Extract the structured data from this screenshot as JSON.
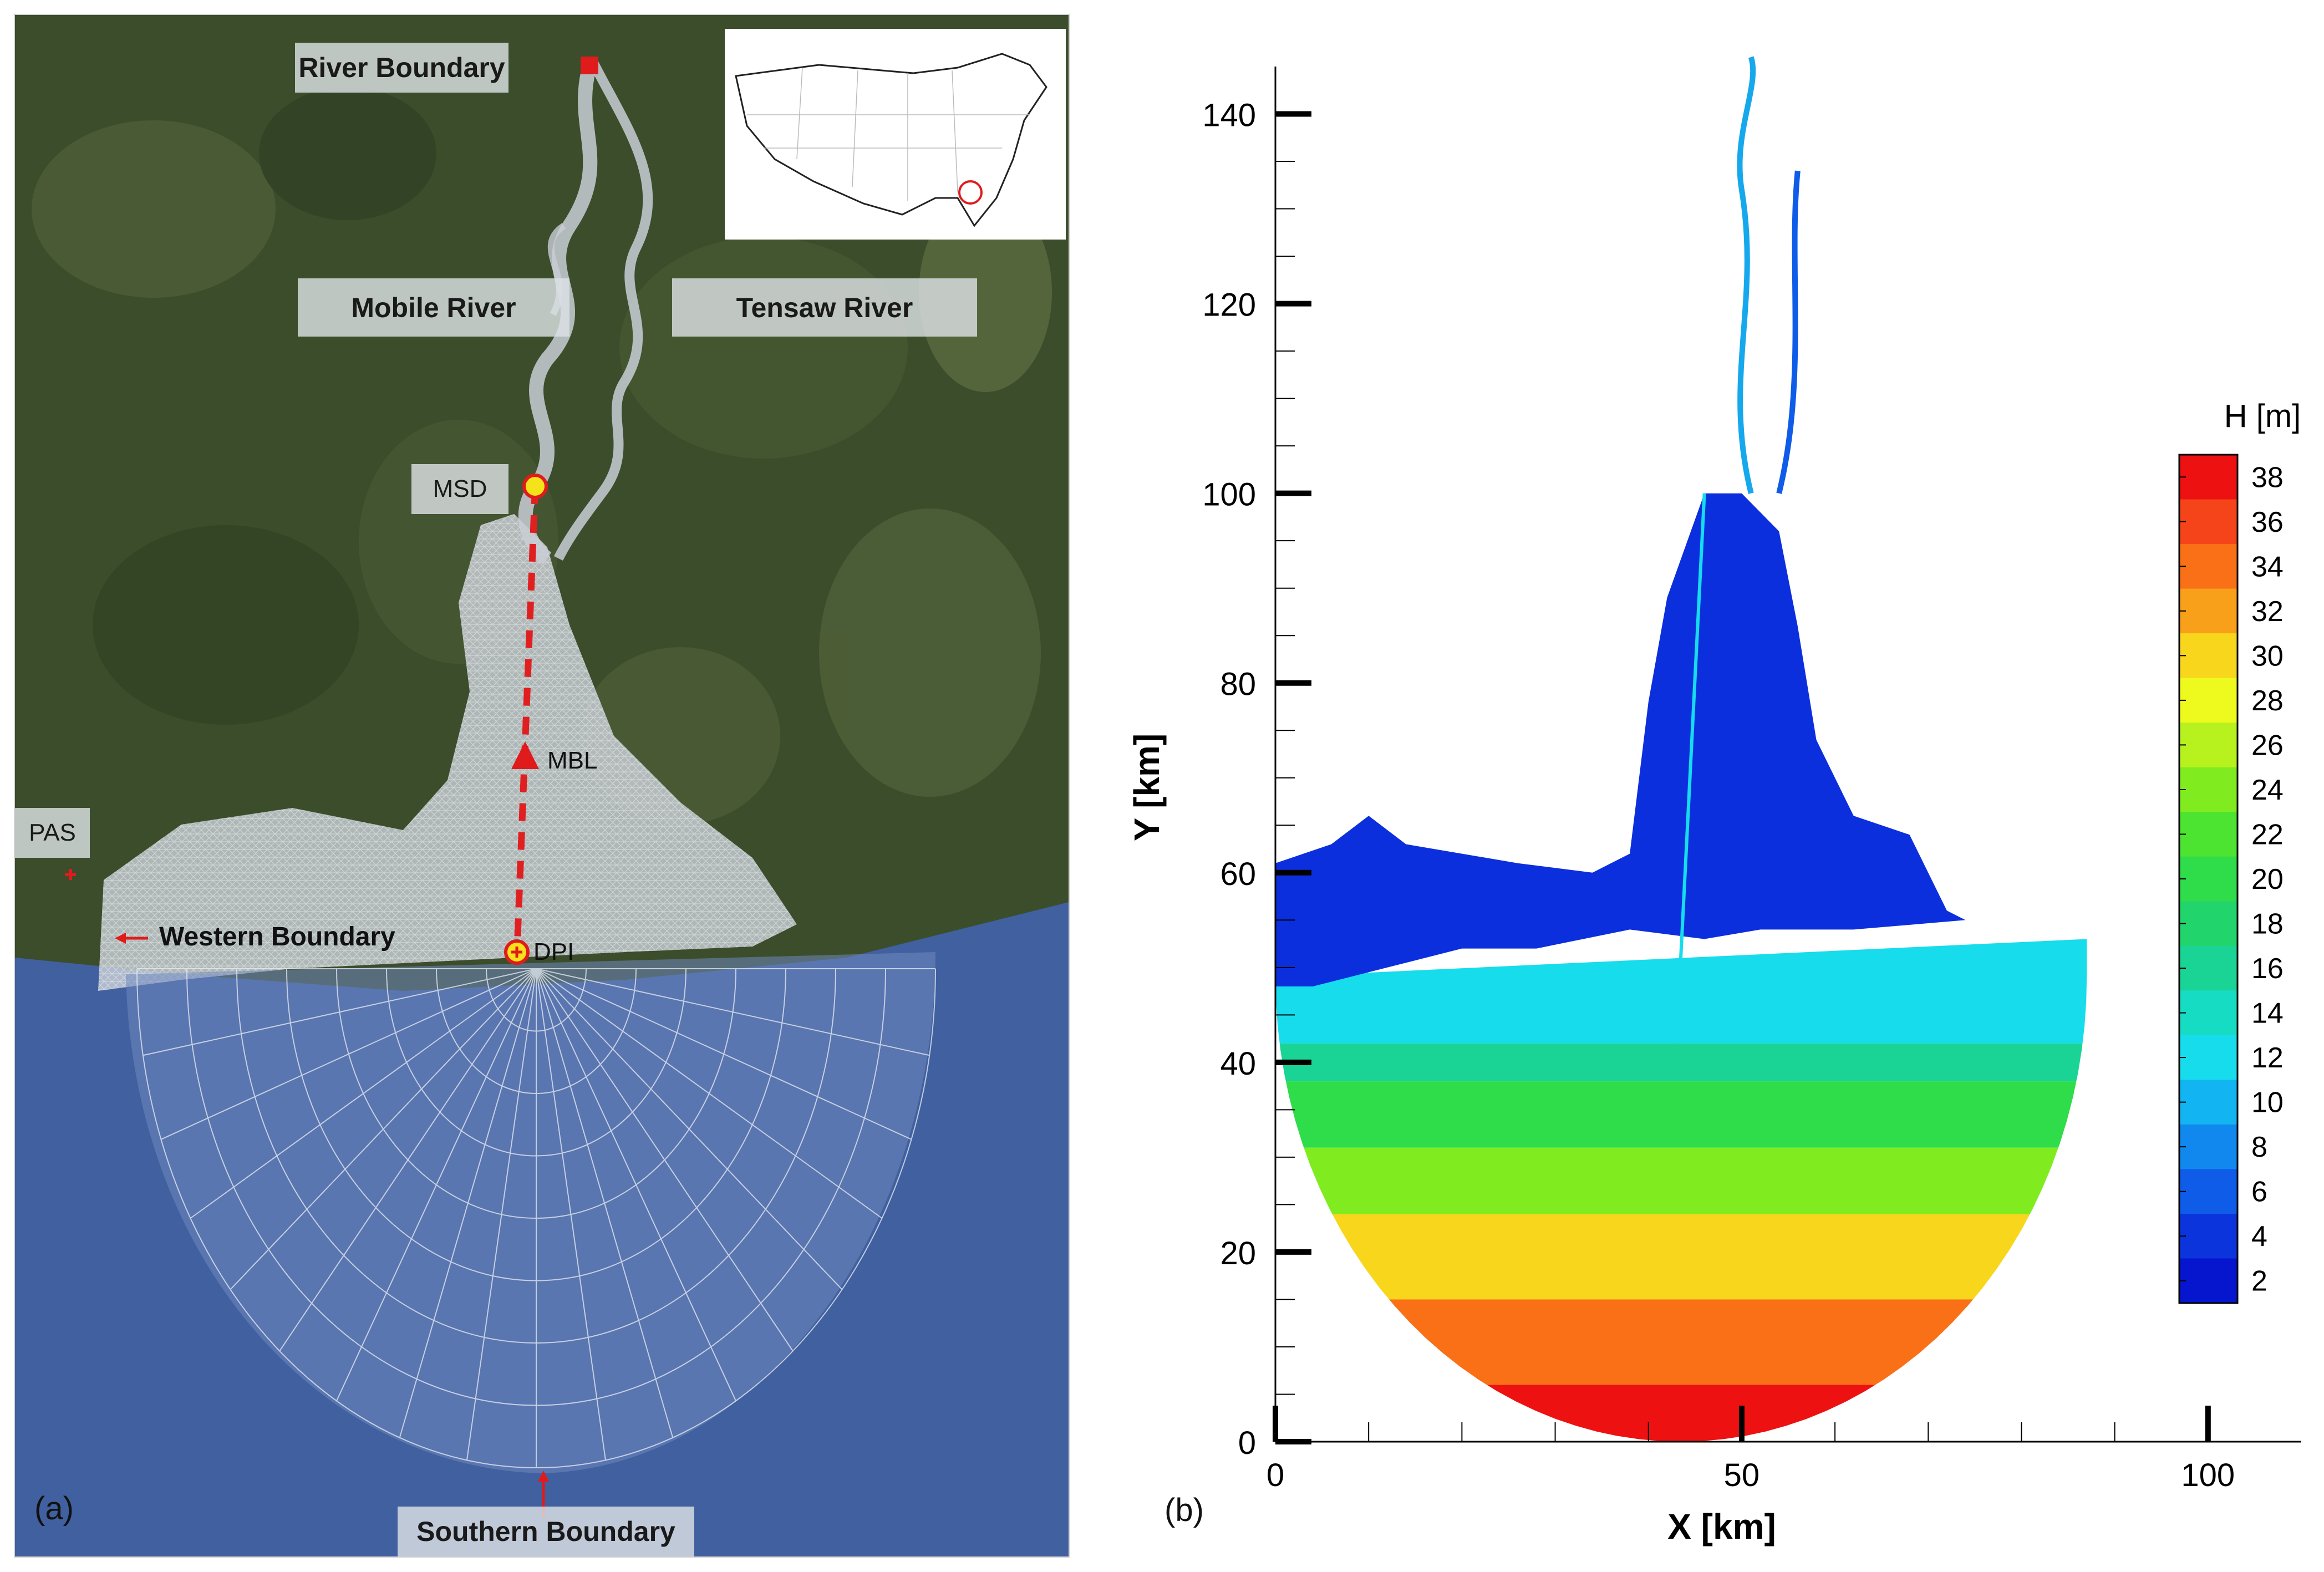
{
  "panel_a": {
    "tag": "(a)",
    "labels": {
      "river_boundary": "River Boundary",
      "mobile_river": "Mobile River",
      "tensaw_river": "Tensaw River",
      "msd": "MSD",
      "mbl": "MBL",
      "pas": "PAS",
      "western_boundary": "Western Boundary",
      "dpi": "DPI",
      "southern_boundary": "Southern Boundary"
    },
    "colors": {
      "land": "#3d4f2c",
      "water": "#3f5fa0",
      "mesh": "#e6e9ee",
      "marker_red": "#e01b1b",
      "marker_yellow": "#f4e21a"
    }
  },
  "panel_b": {
    "tag": "(b)",
    "colorbar": {
      "title": "H [m]",
      "ticks": [
        "38",
        "36",
        "34",
        "32",
        "30",
        "28",
        "26",
        "24",
        "22",
        "20",
        "18",
        "16",
        "14",
        "12",
        "10",
        "8",
        "6",
        "4",
        "2"
      ],
      "colors": [
        "#ee1111",
        "#f6441a",
        "#fa7016",
        "#f9a01a",
        "#f7d61c",
        "#eefa1e",
        "#b8f21e",
        "#80ec20",
        "#4ce430",
        "#2fdc4a",
        "#22d46c",
        "#1ad496",
        "#16dcc4",
        "#16dcec",
        "#12b4f2",
        "#1088ee",
        "#0e5ce8",
        "#0c34dc",
        "#0616cf"
      ]
    },
    "chart_data": {
      "type": "heatmap",
      "title": "",
      "xlabel": "X [km]",
      "ylabel": "Y [km]",
      "xlim": [
        0,
        110
      ],
      "ylim": [
        0,
        145
      ],
      "x_ticks": [
        0,
        50,
        100
      ],
      "y_ticks": [
        0,
        20,
        40,
        60,
        80,
        100,
        120,
        140
      ],
      "colorbar_label": "H [m]",
      "colorbar_range": [
        2,
        38
      ],
      "depth_bands": [
        {
          "y_range": [
            42,
            53
          ],
          "depth": 11
        },
        {
          "y_range": [
            38,
            42
          ],
          "depth": 16
        },
        {
          "y_range": [
            31,
            38
          ],
          "depth": 20
        },
        {
          "y_range": [
            24,
            31
          ],
          "depth": 24
        },
        {
          "y_range": [
            15,
            24
          ],
          "depth": 30
        },
        {
          "y_range": [
            6,
            15
          ],
          "depth": 33
        },
        {
          "y_range": [
            0,
            6
          ],
          "depth": 37
        }
      ]
    }
  }
}
